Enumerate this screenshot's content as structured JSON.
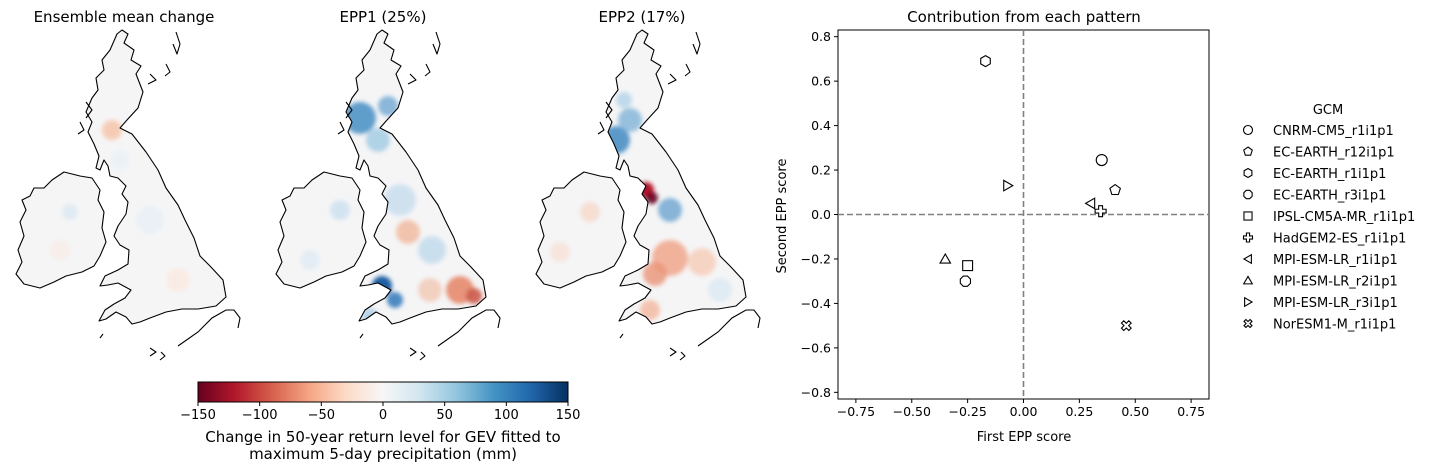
{
  "maps": [
    {
      "title": "Ensemble mean change",
      "style": "mean"
    },
    {
      "title": "EPP1 (25%)",
      "style": "epp1"
    },
    {
      "title": "EPP2 (17%)",
      "style": "epp2"
    }
  ],
  "colorbar": {
    "ticks": [
      "−150",
      "−100",
      "−50",
      "0",
      "50",
      "100",
      "150"
    ],
    "tick_values": [
      -150,
      -100,
      -50,
      0,
      50,
      100,
      150
    ],
    "range": [
      -150,
      150
    ],
    "colormap": "RdBu",
    "label_line1": "Change in 50-year return level for GEV fitted to",
    "label_line2": "maximum 5-day precipitation (mm)",
    "colors": [
      "#67001f",
      "#b2182b",
      "#d6604d",
      "#f4a582",
      "#fddbc7",
      "#f7f7f7",
      "#d1e5f0",
      "#92c5de",
      "#4393c3",
      "#2166ac",
      "#053061"
    ]
  },
  "chart_data": {
    "type": "scatter",
    "title": "Contribution from each pattern",
    "xlabel": "First EPP score",
    "ylabel": "Second EPP score",
    "xlim": [
      -0.83,
      0.83
    ],
    "ylim": [
      -0.83,
      0.83
    ],
    "xticks": [
      -0.75,
      -0.5,
      -0.25,
      0.0,
      0.25,
      0.5,
      0.75
    ],
    "xtick_labels": [
      "−0.75",
      "−0.50",
      "−0.25",
      "0.00",
      "0.25",
      "0.50",
      "0.75"
    ],
    "yticks": [
      -0.8,
      -0.6,
      -0.4,
      -0.2,
      0.0,
      0.2,
      0.4,
      0.6,
      0.8
    ],
    "ytick_labels": [
      "−0.8",
      "−0.6",
      "−0.4",
      "−0.2",
      "0.0",
      "0.2",
      "0.4",
      "0.6",
      "0.8"
    ],
    "reference_lines": {
      "x": 0,
      "y": 0,
      "style": "dashed",
      "color": "#808080"
    },
    "legend_title": "GCM",
    "legend_position": "right",
    "points": [
      {
        "name": "CNRM-CM5_r1i1p1",
        "marker": "circle",
        "x": 0.35,
        "y": 0.245
      },
      {
        "name": "EC-EARTH_r12i1p1",
        "marker": "pentagon",
        "x": 0.41,
        "y": 0.11
      },
      {
        "name": "EC-EARTH_r1i1p1",
        "marker": "hexagon",
        "x": -0.17,
        "y": 0.69
      },
      {
        "name": "EC-EARTH_r3i1p1",
        "marker": "octagon",
        "x": -0.26,
        "y": -0.3
      },
      {
        "name": "IPSL-CM5A-MR_r1i1p1",
        "marker": "square",
        "x": -0.25,
        "y": -0.23
      },
      {
        "name": "HadGEM2-ES_r1i1p1",
        "marker": "plus",
        "x": 0.345,
        "y": 0.015
      },
      {
        "name": "MPI-ESM-LR_r1i1p1",
        "marker": "triangle-left",
        "x": 0.3,
        "y": 0.05
      },
      {
        "name": "MPI-ESM-LR_r2i1p1",
        "marker": "triangle-up",
        "x": -0.35,
        "y": -0.2
      },
      {
        "name": "MPI-ESM-LR_r3i1p1",
        "marker": "triangle-right",
        "x": -0.07,
        "y": 0.13
      },
      {
        "name": "NorESM1-M_r1i1p1",
        "marker": "x-filled",
        "x": 0.46,
        "y": -0.5
      }
    ]
  }
}
